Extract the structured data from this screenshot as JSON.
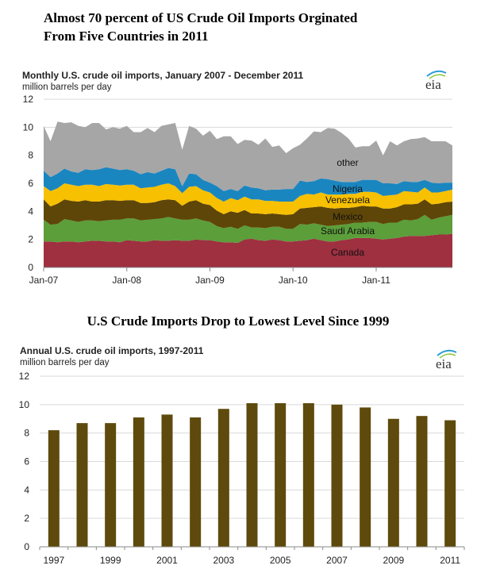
{
  "titles": {
    "top": [
      "Almost 70 percent of US Crude Oil Imports Orginated",
      "From Five Countries in 2011"
    ],
    "middle": "U.S Crude Imports Drop to Lowest Level Since 1999"
  },
  "logo_text": "eia",
  "chart_data": [
    {
      "type": "area",
      "stacked": true,
      "title": "Monthly U.S. crude oil imports, January 2007 - December 2011",
      "ylabel": "million barrels per day",
      "ylim": [
        0,
        12
      ],
      "yticks": [
        "0",
        "2",
        "4",
        "6",
        "8",
        "10",
        "12"
      ],
      "x_range": [
        "Jan-07",
        "Dec-11"
      ],
      "xticks": [
        "Jan-07",
        "Jan-08",
        "Jan-09",
        "Jan-10",
        "Jan-11"
      ],
      "grid": true,
      "legend": "inline labels",
      "series": [
        {
          "name": "Canada",
          "color": "#9e3040",
          "values": [
            1.85,
            1.85,
            1.8,
            1.85,
            1.85,
            1.8,
            1.85,
            1.9,
            1.9,
            1.85,
            1.85,
            1.8,
            1.95,
            1.9,
            1.85,
            1.85,
            1.95,
            1.9,
            1.9,
            1.95,
            1.9,
            1.9,
            2.0,
            1.95,
            1.95,
            1.85,
            1.8,
            1.8,
            1.75,
            2.0,
            2.05,
            1.95,
            1.9,
            2.0,
            1.95,
            1.85,
            1.85,
            1.9,
            1.95,
            2.05,
            1.95,
            1.85,
            1.85,
            1.95,
            2.0,
            2.1,
            2.1,
            2.1,
            2.05,
            2.0,
            2.05,
            2.1,
            2.2,
            2.25,
            2.25,
            2.25,
            2.3,
            2.35,
            2.35,
            2.4
          ]
        },
        {
          "name": "Saudi Arabia",
          "color": "#5b9e3a",
          "values": [
            1.55,
            1.2,
            1.3,
            1.6,
            1.5,
            1.45,
            1.5,
            1.45,
            1.4,
            1.5,
            1.55,
            1.6,
            1.55,
            1.6,
            1.5,
            1.55,
            1.5,
            1.6,
            1.7,
            1.55,
            1.5,
            1.5,
            1.5,
            1.4,
            1.3,
            1.1,
            1.0,
            1.1,
            1.0,
            1.0,
            0.8,
            0.9,
            0.9,
            0.9,
            0.95,
            0.9,
            0.9,
            1.2,
            1.1,
            1.1,
            1.1,
            1.1,
            1.15,
            1.1,
            1.1,
            1.1,
            1.1,
            1.15,
            1.2,
            1.1,
            1.15,
            1.1,
            1.2,
            1.1,
            1.2,
            1.5,
            1.1,
            1.2,
            1.3,
            1.35
          ]
        },
        {
          "name": "Mexico",
          "color": "#5e4608",
          "values": [
            1.45,
            1.3,
            1.45,
            1.4,
            1.4,
            1.45,
            1.45,
            1.35,
            1.4,
            1.45,
            1.4,
            1.35,
            1.3,
            1.3,
            1.25,
            1.2,
            1.2,
            1.3,
            1.25,
            1.3,
            1.0,
            1.3,
            1.3,
            1.2,
            1.2,
            1.1,
            1.0,
            1.1,
            1.15,
            1.1,
            1.0,
            1.0,
            1.0,
            0.95,
            0.9,
            1.0,
            1.05,
            1.1,
            1.2,
            1.15,
            1.3,
            1.3,
            1.2,
            1.2,
            1.15,
            1.1,
            1.2,
            1.1,
            1.1,
            1.1,
            1.0,
            1.1,
            1.1,
            1.15,
            1.1,
            1.1,
            1.1,
            1.0,
            1.0,
            0.95
          ]
        },
        {
          "name": "Venezuela",
          "color": "#f7c000",
          "values": [
            0.95,
            1.1,
            1.1,
            1.15,
            1.15,
            1.1,
            1.1,
            1.2,
            1.1,
            1.15,
            1.1,
            1.1,
            1.1,
            1.1,
            1.05,
            1.1,
            1.1,
            1.1,
            1.15,
            1.0,
            0.9,
            1.05,
            1.0,
            0.95,
            0.9,
            0.9,
            0.9,
            0.95,
            0.9,
            0.95,
            1.0,
            1.0,
            0.95,
            0.9,
            0.9,
            0.95,
            0.9,
            0.9,
            1.0,
            0.9,
            1.0,
            0.95,
            1.0,
            0.95,
            1.0,
            0.95,
            1.0,
            1.05,
            1.0,
            0.9,
            0.95,
            0.9,
            0.95,
            0.9,
            0.8,
            0.85,
            0.85,
            0.8,
            0.8,
            0.85
          ]
        },
        {
          "name": "Nigeria",
          "color": "#1a86c0",
          "values": [
            1.1,
            1.0,
            1.05,
            1.05,
            0.95,
            0.95,
            1.1,
            1.05,
            1.2,
            1.2,
            1.15,
            1.1,
            1.1,
            1.0,
            1.0,
            1.1,
            0.95,
            1.0,
            1.1,
            1.2,
            0.5,
            0.95,
            0.85,
            0.75,
            0.7,
            0.85,
            0.75,
            0.65,
            0.65,
            0.8,
            0.85,
            0.8,
            0.75,
            0.8,
            0.85,
            0.9,
            0.9,
            1.1,
            0.85,
            0.95,
            1.0,
            1.1,
            1.0,
            0.9,
            0.85,
            0.85,
            0.85,
            0.85,
            0.9,
            0.9,
            0.85,
            0.75,
            0.7,
            0.7,
            0.75,
            0.55,
            0.7,
            0.65,
            0.6,
            0.5
          ]
        },
        {
          "name": "other",
          "color": "#a6a6a6",
          "values": [
            3.2,
            2.55,
            3.7,
            3.25,
            3.5,
            3.35,
            3.0,
            3.35,
            3.3,
            2.7,
            2.95,
            2.95,
            3.1,
            2.75,
            3.0,
            3.15,
            2.95,
            3.2,
            3.1,
            3.3,
            2.6,
            3.4,
            3.25,
            3.15,
            3.7,
            3.35,
            3.9,
            3.75,
            3.35,
            3.25,
            3.35,
            3.1,
            3.7,
            3.05,
            3.15,
            2.55,
            2.9,
            2.55,
            3.1,
            3.55,
            3.3,
            3.65,
            3.7,
            3.5,
            3.1,
            2.45,
            2.4,
            2.4,
            2.8,
            2.0,
            3.0,
            2.75,
            2.85,
            3.05,
            3.1,
            3.05,
            2.95,
            3.0,
            2.95,
            2.65
          ]
        }
      ]
    },
    {
      "type": "bar",
      "title": "Annual U.S. crude oil imports, 1997-2011",
      "ylabel": "million barrels per day",
      "ylim": [
        0,
        12
      ],
      "yticks": [
        "0",
        "2",
        "4",
        "6",
        "8",
        "10",
        "12"
      ],
      "categories": [
        "1997",
        "1998",
        "1999",
        "2000",
        "2001",
        "2002",
        "2003",
        "2004",
        "2005",
        "2006",
        "2007",
        "2008",
        "2009",
        "2010",
        "2011"
      ],
      "xtick_labels": [
        "1997",
        "1999",
        "2001",
        "2003",
        "2005",
        "2007",
        "2009",
        "2011"
      ],
      "values": [
        8.2,
        8.7,
        8.7,
        9.1,
        9.3,
        9.1,
        9.7,
        10.1,
        10.1,
        10.1,
        10.0,
        9.8,
        9.0,
        9.2,
        8.9
      ],
      "color": "#5e4a0c",
      "grid": true
    }
  ]
}
